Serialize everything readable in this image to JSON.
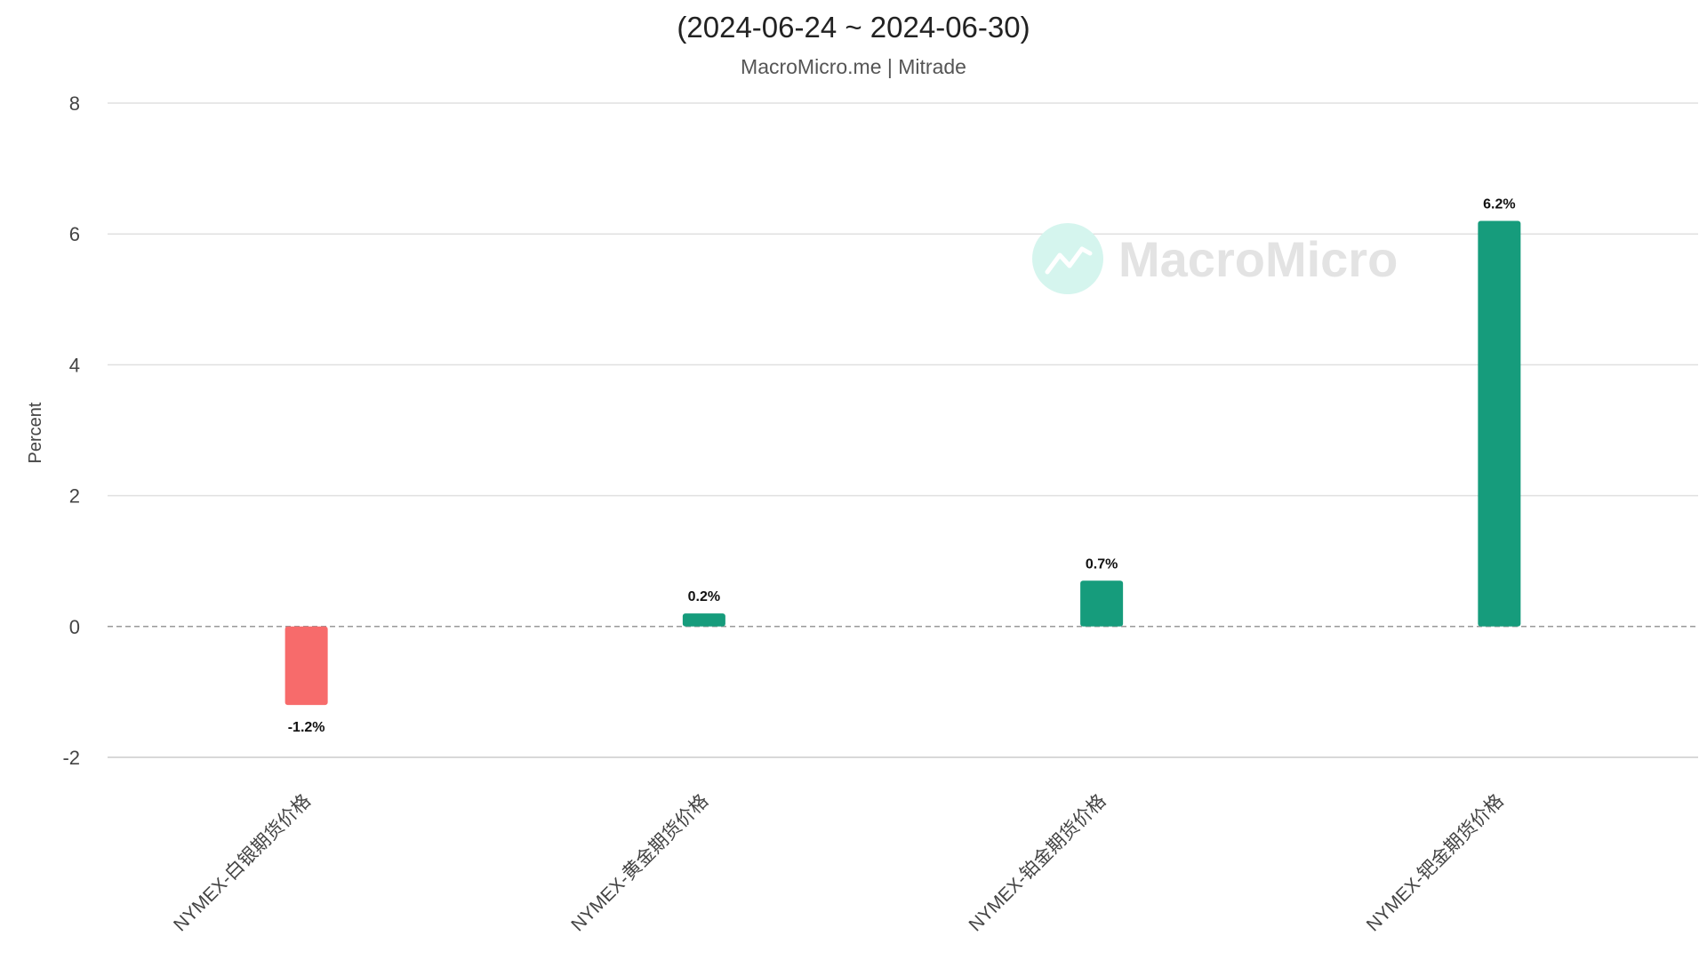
{
  "chart_data": {
    "type": "bar",
    "title": "(2024-06-24 ~ 2024-06-30)",
    "subtitle": "MacroMicro.me | Mitrade",
    "xlabel": "",
    "ylabel": "Percent",
    "ylim": [
      -2,
      8
    ],
    "yticks": [
      -2,
      0,
      2,
      4,
      6,
      8
    ],
    "grid": true,
    "legend": "none",
    "categories": [
      "NYMEX-白银期货价格",
      "NYMEX-黄金期货价格",
      "NYMEX-铂金期货价格",
      "NYMEX-钯金期货价格"
    ],
    "values": [
      -1.2,
      0.2,
      0.7,
      6.2
    ],
    "data_labels": [
      "-1.2%",
      "0.2%",
      "0.7%",
      "6.2%"
    ]
  },
  "watermark": {
    "text": "MacroMicro",
    "icon": "trend-chart-icon"
  },
  "colors": {
    "positive": "#169c7c",
    "negative": "#f76b6b",
    "grid": "#e0e0e0",
    "zero_line": "#999999"
  }
}
